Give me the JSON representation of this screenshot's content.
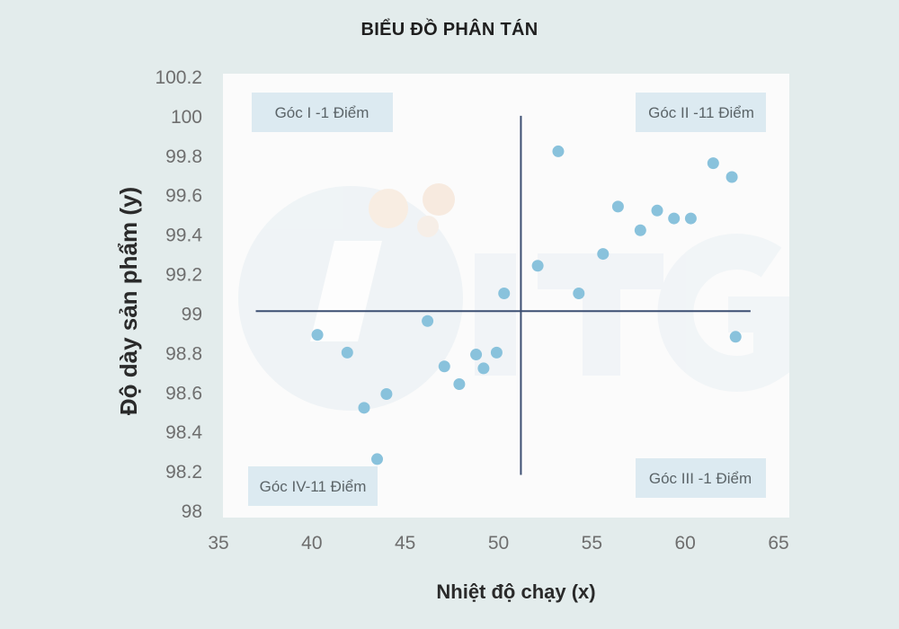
{
  "chart_data": {
    "type": "scatter",
    "title": "BIỂU ĐỒ PHÂN TÁN",
    "xlabel": "Nhiệt độ chạy (x)",
    "ylabel": "Độ dày sản phẩm (y)",
    "xlim": [
      35,
      65
    ],
    "ylim": [
      98,
      100.2
    ],
    "x_ticks": [
      "35",
      "40",
      "45",
      "50",
      "55",
      "60",
      "65"
    ],
    "y_ticks": [
      "98",
      "98.2",
      "98.4",
      "98.6",
      "98.8",
      "99",
      "99.2",
      "99.4",
      "99.6",
      "99.8",
      "100",
      "100.2"
    ],
    "reference_lines": {
      "x": 51.2,
      "y": 99.01,
      "x_range": [
        37,
        63.5
      ],
      "y_range": [
        98.18,
        100
      ]
    },
    "grid": false,
    "point_color": "#89c2dc",
    "line_color": "#3c4f72",
    "quadrant_labels": [
      {
        "text": "Góc I -1 Điểm",
        "position": "top-left"
      },
      {
        "text": "Góc II -11 Điểm",
        "position": "top-right"
      },
      {
        "text": "Góc III -1 Điểm",
        "position": "bottom-right"
      },
      {
        "text": "Góc IV-11 Điểm",
        "position": "bottom-left"
      }
    ],
    "points": [
      {
        "x": 40.3,
        "y": 98.89
      },
      {
        "x": 41.9,
        "y": 98.8
      },
      {
        "x": 42.8,
        "y": 98.52
      },
      {
        "x": 43.5,
        "y": 98.26
      },
      {
        "x": 44.0,
        "y": 98.59
      },
      {
        "x": 46.2,
        "y": 98.96
      },
      {
        "x": 47.1,
        "y": 98.73
      },
      {
        "x": 47.9,
        "y": 98.64
      },
      {
        "x": 48.8,
        "y": 98.79
      },
      {
        "x": 49.2,
        "y": 98.72
      },
      {
        "x": 49.9,
        "y": 98.8
      },
      {
        "x": 50.3,
        "y": 99.1
      },
      {
        "x": 52.1,
        "y": 99.24
      },
      {
        "x": 53.2,
        "y": 99.82
      },
      {
        "x": 54.3,
        "y": 99.1
      },
      {
        "x": 55.6,
        "y": 99.3
      },
      {
        "x": 56.4,
        "y": 99.54
      },
      {
        "x": 57.6,
        "y": 99.42
      },
      {
        "x": 58.5,
        "y": 99.52
      },
      {
        "x": 59.4,
        "y": 99.48
      },
      {
        "x": 60.3,
        "y": 99.48
      },
      {
        "x": 61.5,
        "y": 99.76
      },
      {
        "x": 62.5,
        "y": 99.69
      },
      {
        "x": 62.7,
        "y": 98.88
      }
    ]
  }
}
